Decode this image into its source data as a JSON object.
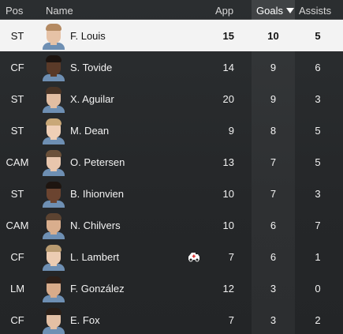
{
  "header": {
    "pos": "Pos",
    "name": "Name",
    "app": "App",
    "goals": "Goals",
    "assists": "Assists"
  },
  "sort": {
    "column": "Goals",
    "direction": "descending",
    "icon": "sort-down-icon"
  },
  "colors": {
    "selected_row": "#f3f3f3",
    "background": "#26292b",
    "text": "#f2f2f2"
  },
  "rows": [
    {
      "pos": "ST",
      "name": "F. Louis",
      "app": "15",
      "goals": "10",
      "assists": "5",
      "selected": true,
      "skin": "#e6c2a6",
      "hair": "#b48a62"
    },
    {
      "pos": "CF",
      "name": "S. Tovide",
      "app": "14",
      "goals": "9",
      "assists": "6",
      "selected": false,
      "skin": "#5a3a28",
      "hair": "#1c1410"
    },
    {
      "pos": "ST",
      "name": "X. Aguilar",
      "app": "20",
      "goals": "9",
      "assists": "3",
      "selected": false,
      "skin": "#e3bea2",
      "hair": "#4a3526"
    },
    {
      "pos": "ST",
      "name": "M. Dean",
      "app": "9",
      "goals": "8",
      "assists": "5",
      "selected": false,
      "skin": "#efcfb6",
      "hair": "#c9a878"
    },
    {
      "pos": "CAM",
      "name": "O. Petersen",
      "app": "13",
      "goals": "7",
      "assists": "5",
      "selected": false,
      "skin": "#e8c6ad",
      "hair": "#6b513a"
    },
    {
      "pos": "ST",
      "name": "B. Ihionvien",
      "app": "10",
      "goals": "7",
      "assists": "3",
      "selected": false,
      "skin": "#6b4430",
      "hair": "#1e1510"
    },
    {
      "pos": "CAM",
      "name": "N. Chilvers",
      "app": "10",
      "goals": "6",
      "assists": "7",
      "selected": false,
      "skin": "#d9ae8d",
      "hair": "#5c4331"
    },
    {
      "pos": "CF",
      "name": "L. Lambert",
      "app": "7",
      "goals": "6",
      "assists": "1",
      "selected": false,
      "skin": "#ecccb2",
      "hair": "#b89a70",
      "injured": true
    },
    {
      "pos": "LM",
      "name": "F. González",
      "app": "12",
      "goals": "3",
      "assists": "0",
      "selected": false,
      "skin": "#d8ab8a",
      "hair": "#2e2019"
    },
    {
      "pos": "CF",
      "name": "E. Fox",
      "app": "7",
      "goals": "3",
      "assists": "2",
      "selected": false,
      "skin": "#e4c0a4",
      "hair": "#2a1f18"
    }
  ]
}
